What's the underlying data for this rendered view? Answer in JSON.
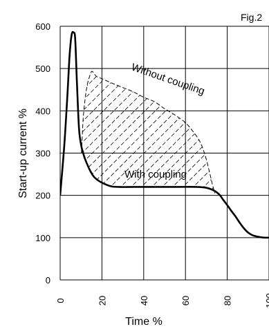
{
  "chart_data": {
    "type": "line",
    "figure_label": "Fig.2",
    "xlabel": "Time %",
    "ylabel": "Start-up current %",
    "xlim": [
      0,
      100
    ],
    "ylim": [
      0,
      600
    ],
    "x_ticks": [
      0,
      20,
      40,
      60,
      80,
      100
    ],
    "x_tick_labels": [
      "0",
      "20",
      "40",
      "60",
      "80",
      "100"
    ],
    "y_ticks": [
      0,
      100,
      200,
      300,
      400,
      500,
      600
    ],
    "y_tick_labels": [
      "0",
      "100",
      "200",
      "300",
      "400",
      "500",
      "600"
    ],
    "grid": true,
    "series": [
      {
        "name": "With coupling",
        "style": "solid",
        "x": [
          0,
          2,
          3.5,
          4.5,
          5.5,
          6.5,
          7.2,
          8,
          9,
          10,
          11,
          12,
          14,
          16,
          18,
          20,
          24,
          28,
          40,
          55,
          65,
          70,
          73,
          76,
          78,
          80,
          82,
          84,
          86,
          88,
          90,
          92,
          94,
          96,
          98,
          100
        ],
        "y": [
          200,
          320,
          440,
          530,
          580,
          585,
          570,
          470,
          360,
          320,
          300,
          285,
          262,
          245,
          236,
          230,
          222,
          220,
          220,
          220,
          220,
          218,
          213,
          203,
          190,
          177,
          163,
          150,
          135,
          122,
          112,
          106,
          103,
          101,
          100,
          100
        ]
      },
      {
        "name": "Without coupling",
        "style": "dashed",
        "x": [
          10.2,
          11,
          12,
          13,
          14,
          15,
          16,
          17,
          18,
          19,
          20,
          25,
          30,
          35,
          40,
          45,
          50,
          55,
          60,
          63,
          66,
          68,
          70,
          71,
          72,
          72.8,
          73.5,
          74
        ],
        "y": [
          300,
          380,
          430,
          462,
          480,
          493,
          490,
          483,
          480,
          478,
          476,
          465,
          455,
          445,
          432,
          422,
          405,
          390,
          372,
          355,
          335,
          315,
          285,
          265,
          245,
          228,
          215,
          205
        ]
      }
    ],
    "annotations": [
      "Without coupling",
      "With coupling"
    ],
    "hatched_region": "between Without coupling and With coupling curves"
  }
}
